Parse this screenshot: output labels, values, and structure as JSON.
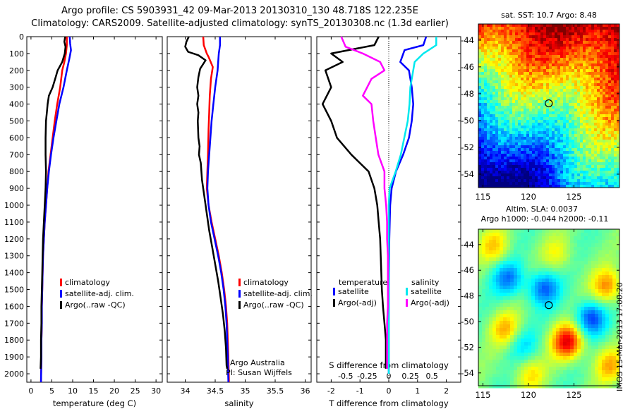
{
  "header": {
    "title_line1": "Argo profile: CS 5903931_42 09-Mar-2013 20130310_130 48.718S 122.235E",
    "title_line2": "Climatology: CARS2009. Satellite-adjusted climatology: synTS_20130308.nc (1.3d earlier)"
  },
  "stamp": "IMOS 15-Mar-2013 17:00:20",
  "colors": {
    "climatology": "#ff0000",
    "satellite": "#0000ff",
    "argo": "#000000",
    "sat_diff": "#00e8ee",
    "argo_s_diff": "#ff00ff"
  },
  "chart_data": [
    {
      "id": "temperature",
      "type": "line",
      "xlabel": "temperature (deg C)",
      "ylim": [
        2050,
        0
      ],
      "xlim": [
        -1,
        31.5
      ],
      "xticks": [
        0,
        5,
        10,
        15,
        20,
        25,
        30
      ],
      "yticks": [
        0,
        100,
        200,
        300,
        400,
        500,
        600,
        700,
        800,
        900,
        1000,
        1100,
        1200,
        1300,
        1400,
        1500,
        1600,
        1700,
        1800,
        1900,
        2000
      ],
      "legend": [
        "climatology",
        "satellite-adj. clim.",
        "Argo(..raw -QC)"
      ],
      "series": [
        {
          "name": "climatology",
          "color": "#ff0000",
          "points": [
            [
              8.6,
              0
            ],
            [
              8.6,
              50
            ],
            [
              8.4,
              100
            ],
            [
              8.0,
              150
            ],
            [
              7.5,
              200
            ],
            [
              7.0,
              300
            ],
            [
              6.3,
              400
            ],
            [
              5.7,
              500
            ],
            [
              5.2,
              600
            ],
            [
              4.7,
              700
            ],
            [
              4.2,
              800
            ],
            [
              3.9,
              900
            ],
            [
              3.6,
              1000
            ],
            [
              3.3,
              1100
            ],
            [
              3.1,
              1200
            ],
            [
              2.9,
              1300
            ],
            [
              2.8,
              1400
            ],
            [
              2.7,
              1500
            ],
            [
              2.6,
              1600
            ],
            [
              2.6,
              1700
            ],
            [
              2.5,
              1800
            ],
            [
              2.5,
              1900
            ],
            [
              2.4,
              2050
            ]
          ]
        },
        {
          "name": "satellite-adj. clim.",
          "color": "#0000ff",
          "points": [
            [
              9.3,
              0
            ],
            [
              9.4,
              40
            ],
            [
              9.6,
              80
            ],
            [
              9.2,
              130
            ],
            [
              8.6,
              200
            ],
            [
              7.8,
              300
            ],
            [
              6.8,
              400
            ],
            [
              6.1,
              500
            ],
            [
              5.4,
              600
            ],
            [
              4.8,
              700
            ],
            [
              4.3,
              800
            ],
            [
              3.9,
              900
            ],
            [
              3.6,
              1000
            ],
            [
              3.3,
              1100
            ],
            [
              3.1,
              1200
            ],
            [
              2.9,
              1300
            ],
            [
              2.8,
              1400
            ],
            [
              2.7,
              1500
            ],
            [
              2.6,
              1600
            ],
            [
              2.6,
              1700
            ],
            [
              2.5,
              1800
            ],
            [
              2.5,
              1900
            ],
            [
              2.4,
              2050
            ]
          ]
        },
        {
          "name": "Argo(..raw -QC)",
          "color": "#000000",
          "points": [
            [
              8.2,
              0
            ],
            [
              8.0,
              30
            ],
            [
              8.3,
              60
            ],
            [
              8.1,
              100
            ],
            [
              7.5,
              150
            ],
            [
              6.4,
              200
            ],
            [
              5.8,
              250
            ],
            [
              5.2,
              300
            ],
            [
              4.3,
              350
            ],
            [
              4.0,
              400
            ],
            [
              3.8,
              450
            ],
            [
              3.6,
              500
            ],
            [
              3.5,
              600
            ],
            [
              3.5,
              700
            ],
            [
              3.6,
              800
            ],
            [
              3.5,
              900
            ],
            [
              3.3,
              1000
            ],
            [
              3.1,
              1100
            ],
            [
              2.9,
              1200
            ],
            [
              2.8,
              1300
            ],
            [
              2.7,
              1400
            ],
            [
              2.6,
              1500
            ],
            [
              2.5,
              1600
            ],
            [
              2.5,
              1700
            ],
            [
              2.4,
              1800
            ],
            [
              2.4,
              1900
            ],
            [
              2.3,
              1970
            ]
          ]
        }
      ]
    },
    {
      "id": "salinity",
      "type": "line",
      "xlabel": "salinity",
      "ylim": [
        2050,
        0
      ],
      "xlim": [
        33.7,
        36.1
      ],
      "xticks": [
        34,
        34.5,
        35,
        35.5,
        36
      ],
      "legend": [
        "climatology",
        "satellite-adj. clim.",
        "Argo(..raw -QC)"
      ],
      "annotations": [
        "Argo Australia",
        "PI: Susan Wijffels"
      ],
      "series": [
        {
          "name": "climatology",
          "color": "#ff0000",
          "points": [
            [
              34.3,
              0
            ],
            [
              34.31,
              50
            ],
            [
              34.36,
              100
            ],
            [
              34.39,
              120
            ],
            [
              34.46,
              180
            ],
            [
              34.43,
              250
            ],
            [
              34.41,
              350
            ],
            [
              34.4,
              450
            ],
            [
              34.39,
              550
            ],
            [
              34.38,
              700
            ],
            [
              34.37,
              800
            ],
            [
              34.36,
              900
            ],
            [
              34.39,
              1000
            ],
            [
              34.44,
              1100
            ],
            [
              34.5,
              1200
            ],
            [
              34.56,
              1300
            ],
            [
              34.61,
              1400
            ],
            [
              34.65,
              1500
            ],
            [
              34.68,
              1600
            ],
            [
              34.7,
              1700
            ],
            [
              34.71,
              1800
            ],
            [
              34.72,
              1900
            ],
            [
              34.73,
              2050
            ]
          ]
        },
        {
          "name": "satellite-adj. clim.",
          "color": "#0000ff",
          "points": [
            [
              34.58,
              0
            ],
            [
              34.58,
              50
            ],
            [
              34.56,
              100
            ],
            [
              34.54,
              200
            ],
            [
              34.5,
              300
            ],
            [
              34.47,
              400
            ],
            [
              34.44,
              500
            ],
            [
              34.42,
              600
            ],
            [
              34.4,
              700
            ],
            [
              34.38,
              800
            ],
            [
              34.37,
              900
            ],
            [
              34.39,
              1000
            ],
            [
              34.43,
              1100
            ],
            [
              34.49,
              1200
            ],
            [
              34.55,
              1300
            ],
            [
              34.6,
              1400
            ],
            [
              34.64,
              1500
            ],
            [
              34.67,
              1600
            ],
            [
              34.69,
              1700
            ],
            [
              34.7,
              1800
            ],
            [
              34.71,
              1900
            ],
            [
              34.72,
              2050
            ]
          ]
        },
        {
          "name": "Argo(..raw -QC)",
          "color": "#000000",
          "points": [
            [
              34.06,
              0
            ],
            [
              34.02,
              30
            ],
            [
              34.0,
              60
            ],
            [
              34.05,
              90
            ],
            [
              34.22,
              110
            ],
            [
              34.34,
              140
            ],
            [
              34.25,
              190
            ],
            [
              34.22,
              240
            ],
            [
              34.2,
              300
            ],
            [
              34.22,
              350
            ],
            [
              34.2,
              400
            ],
            [
              34.22,
              450
            ],
            [
              34.21,
              500
            ],
            [
              34.22,
              600
            ],
            [
              34.24,
              650
            ],
            [
              34.23,
              700
            ],
            [
              34.26,
              750
            ],
            [
              34.28,
              850
            ],
            [
              34.32,
              950
            ],
            [
              34.36,
              1050
            ],
            [
              34.4,
              1150
            ],
            [
              34.45,
              1250
            ],
            [
              34.5,
              1350
            ],
            [
              34.55,
              1450
            ],
            [
              34.59,
              1550
            ],
            [
              34.63,
              1650
            ],
            [
              34.66,
              1750
            ],
            [
              34.68,
              1850
            ],
            [
              34.69,
              1950
            ],
            [
              34.7,
              1970
            ]
          ]
        }
      ]
    },
    {
      "id": "differences",
      "type": "line",
      "xlabel": "T difference from climatology",
      "xlabel_top": "S difference from climatology",
      "ylim": [
        2050,
        0
      ],
      "xlim": [
        -2.5,
        2.5
      ],
      "xticks": [
        -2,
        -1,
        0,
        1,
        2
      ],
      "xticks_s": [
        -0.5,
        -0.25,
        0,
        0.25,
        0.5
      ],
      "xticks_s_labels": [
        "-0.5",
        "-0.25",
        "0",
        "0.25",
        "0.5"
      ],
      "legend_headers": [
        "temperature",
        "salinity"
      ],
      "legend": [
        "satellite",
        "Argo(-adj)",
        "satellite",
        "Argo(-adj)"
      ],
      "series": [
        {
          "name": "temperature satellite",
          "color": "#0000ff",
          "points": [
            [
              1.3,
              0
            ],
            [
              1.2,
              50
            ],
            [
              0.55,
              80
            ],
            [
              0.4,
              150
            ],
            [
              0.7,
              200
            ],
            [
              0.8,
              300
            ],
            [
              0.85,
              400
            ],
            [
              0.8,
              500
            ],
            [
              0.7,
              600
            ],
            [
              0.5,
              700
            ],
            [
              0.25,
              800
            ],
            [
              0.1,
              900
            ],
            [
              0.05,
              1000
            ],
            [
              0.02,
              1200
            ],
            [
              0.0,
              1500
            ],
            [
              0.0,
              1800
            ],
            [
              0.0,
              2000
            ]
          ]
        },
        {
          "name": "temperature Argo(-adj)",
          "color": "#000000",
          "points": [
            [
              -0.35,
              0
            ],
            [
              -0.5,
              50
            ],
            [
              -2.0,
              100
            ],
            [
              -1.6,
              150
            ],
            [
              -2.2,
              200
            ],
            [
              -2.0,
              300
            ],
            [
              -2.3,
              400
            ],
            [
              -2.0,
              500
            ],
            [
              -1.8,
              600
            ],
            [
              -1.3,
              700
            ],
            [
              -0.7,
              800
            ],
            [
              -0.5,
              900
            ],
            [
              -0.4,
              1000
            ],
            [
              -0.35,
              1100
            ],
            [
              -0.3,
              1200
            ],
            [
              -0.28,
              1300
            ],
            [
              -0.26,
              1400
            ],
            [
              -0.24,
              1500
            ],
            [
              -0.2,
              1600
            ],
            [
              -0.15,
              1700
            ],
            [
              -0.1,
              1800
            ],
            [
              -0.1,
              1900
            ],
            [
              -0.1,
              1970
            ]
          ]
        },
        {
          "name": "salinity satellite",
          "color": "#00e8ee",
          "points": [
            [
              0.55,
              0
            ],
            [
              0.55,
              50
            ],
            [
              0.4,
              100
            ],
            [
              0.3,
              150
            ],
            [
              0.25,
              300
            ],
            [
              0.24,
              400
            ],
            [
              0.22,
              500
            ],
            [
              0.18,
              600
            ],
            [
              0.14,
              700
            ],
            [
              0.08,
              800
            ],
            [
              0.01,
              900
            ],
            [
              0.0,
              1000
            ],
            [
              0.0,
              1300
            ],
            [
              0.0,
              1600
            ],
            [
              0.0,
              2000
            ]
          ]
        },
        {
          "name": "salinity Argo(-adj)",
          "color": "#ff00ff",
          "points": [
            [
              -0.55,
              0
            ],
            [
              -0.5,
              60
            ],
            [
              -0.3,
              100
            ],
            [
              -0.1,
              150
            ],
            [
              -0.05,
              200
            ],
            [
              -0.2,
              250
            ],
            [
              -0.3,
              350
            ],
            [
              -0.2,
              400
            ],
            [
              -0.18,
              500
            ],
            [
              -0.15,
              600
            ],
            [
              -0.12,
              700
            ],
            [
              -0.05,
              800
            ],
            [
              -0.05,
              900
            ],
            [
              -0.03,
              1000
            ],
            [
              -0.02,
              1100
            ],
            [
              -0.02,
              1200
            ],
            [
              -0.01,
              1300
            ],
            [
              -0.01,
              1400
            ],
            [
              -0.01,
              1500
            ],
            [
              -0.01,
              1600
            ],
            [
              -0.02,
              1700
            ],
            [
              -0.02,
              1800
            ],
            [
              -0.02,
              1900
            ],
            [
              -0.02,
              1970
            ]
          ]
        }
      ]
    },
    {
      "id": "sst_map",
      "type": "heatmap",
      "title": "sat. SST: 10.7  Argo: 8.48",
      "xlim": [
        114.5,
        130
      ],
      "ylim": [
        -55,
        -42.8
      ],
      "xticks": [
        115,
        120,
        125
      ],
      "yticks": [
        -44,
        -46,
        -48,
        -50,
        -52,
        -54
      ],
      "marker": [
        122.235,
        -48.718
      ]
    },
    {
      "id": "sla_map",
      "type": "heatmap",
      "title": "Altim. SLA: 0.0037",
      "subtitle": "Argo h1000: -0.044 h2000: -0.11",
      "xlim": [
        114.5,
        130
      ],
      "ylim": [
        -55,
        -42.8
      ],
      "xticks": [
        115,
        120,
        125
      ],
      "yticks": [
        -44,
        -46,
        -48,
        -50,
        -52,
        -54
      ],
      "marker": [
        122.235,
        -48.718
      ]
    }
  ]
}
